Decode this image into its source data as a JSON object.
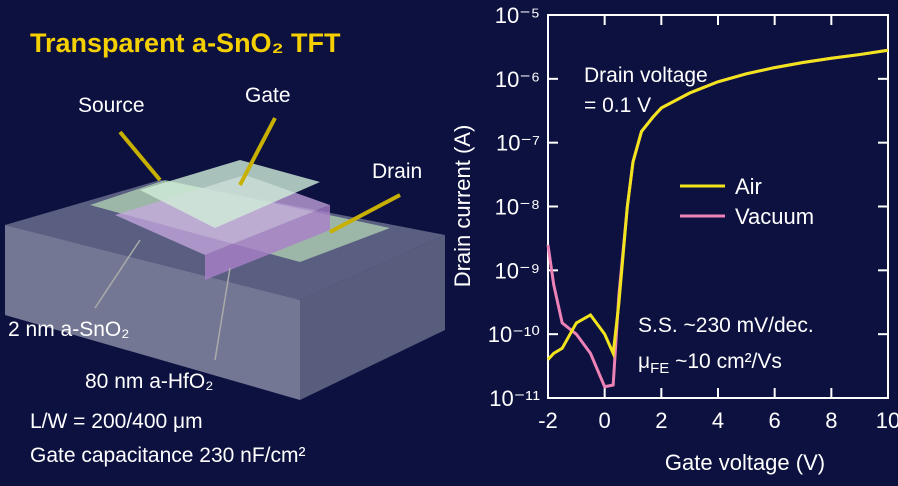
{
  "diagram": {
    "title": "Transparent a-SnO₂ TFT",
    "labels": {
      "source": "Source",
      "gate": "Gate",
      "drain": "Drain",
      "channel": "2 nm a-SnO₂",
      "insulator": "80 nm a-HfO₂"
    },
    "dimensions": "L/W = 200/400 μm",
    "capacitance": "Gate capacitance 230 nF/cm²"
  },
  "chart_data": {
    "type": "line",
    "x_label": "Gate voltage (V)",
    "y_label": "Drain current (A)",
    "log_y": true,
    "annotations": {
      "condition": "Drain voltage",
      "condition_value": "= 0.1 V",
      "swing": "S.S. ~230 mV/dec.",
      "mobility_symbol": "μ",
      "mobility_sub": "FE",
      "mobility_value": " ~10 cm²/Vs"
    },
    "x": [
      -2,
      -1.8,
      -1.5,
      -1,
      -0.5,
      0,
      0.3,
      0.5,
      0.8,
      1,
      1.3,
      1.7,
      2,
      3,
      4,
      5,
      6,
      7,
      8,
      9,
      10
    ],
    "series": [
      {
        "name": "Air",
        "color": "#f2e41c",
        "values": [
          4e-11,
          5e-11,
          6e-11,
          1.5e-10,
          2e-10,
          1e-10,
          5e-11,
          3e-10,
          1e-08,
          5e-08,
          1.5e-07,
          2.5e-07,
          3.5e-07,
          6e-07,
          9e-07,
          1.2e-06,
          1.5e-06,
          1.8e-06,
          2.1e-06,
          2.4e-06,
          2.8e-06
        ]
      },
      {
        "name": "Vacuum",
        "color": "#ec82b6",
        "values": [
          2.5e-09,
          6e-10,
          1.5e-10,
          1e-10,
          5e-11,
          1.5e-11,
          1.6e-11,
          4e-10,
          1e-08,
          5e-08,
          1.5e-07,
          2.5e-07,
          3.5e-07,
          6e-07,
          9e-07,
          1.2e-06,
          1.5e-06,
          1.8e-06,
          2.1e-06,
          2.4e-06,
          2.8e-06
        ]
      }
    ],
    "xlim": [
      -2,
      10
    ],
    "xticks": [
      -2,
      0,
      2,
      4,
      6,
      8,
      10
    ],
    "ylim": [
      1e-11,
      1e-05
    ],
    "yticks": [
      {
        "value": 1e-11,
        "label": "10⁻¹¹"
      },
      {
        "value": 1e-10,
        "label": "10⁻¹⁰"
      },
      {
        "value": 1e-09,
        "label": "10⁻⁹"
      },
      {
        "value": 1e-08,
        "label": "10⁻⁸"
      },
      {
        "value": 1e-07,
        "label": "10⁻⁷"
      },
      {
        "value": 1e-06,
        "label": "10⁻⁶"
      },
      {
        "value": 1e-05,
        "label": "10⁻⁵"
      }
    ]
  }
}
